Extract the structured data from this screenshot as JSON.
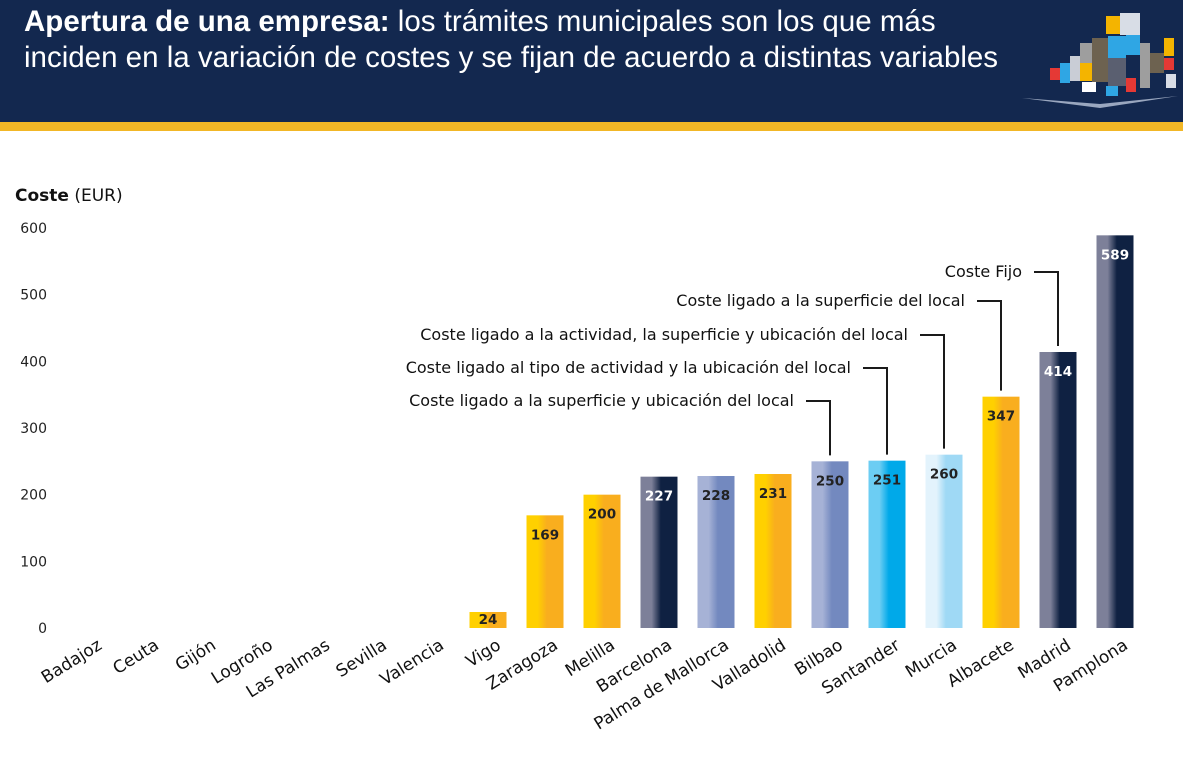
{
  "header": {
    "title_bold": "Apertura de una empresa:",
    "title_rest": " los trámites municipales son los que más inciden en la variación de costes y se fijan de acuerdo a distintas variables",
    "colors": {
      "background": "#13284f",
      "stripe": "#f2b726"
    }
  },
  "chart_data": {
    "type": "bar",
    "title": "Apertura de una empresa: los trámites municipales son los que más inciden en la variación de costes y se fijan de acuerdo a distintas variables",
    "ylabel_bold": "Coste",
    "ylabel_rest": " (EUR)",
    "xlabel": "",
    "ylim": [
      0,
      600
    ],
    "yticks": [
      0,
      100,
      200,
      300,
      400,
      500,
      600
    ],
    "grid": false,
    "categories": [
      "Badajoz",
      "Ceuta",
      "Gijón",
      "Logroño",
      "Las Palmas",
      "Sevilla",
      "Valencia",
      "Vigo",
      "Zaragoza",
      "Melilla",
      "Barcelona",
      "Palma de Mallorca",
      "Valladolid",
      "Bilbao",
      "Santander",
      "Murcia",
      "Albacete",
      "Madrid",
      "Pamplona"
    ],
    "values": [
      0,
      0,
      0,
      0,
      0,
      0,
      0,
      24,
      169,
      200,
      227,
      228,
      231,
      250,
      251,
      260,
      347,
      414,
      589
    ],
    "bar_types": [
      "none",
      "none",
      "none",
      "none",
      "none",
      "none",
      "none",
      "superficie",
      "superficie",
      "superficie",
      "fijo",
      "superficie_ubicacion",
      "superficie",
      "superficie_ubicacion",
      "actividad_ubicacion",
      "actividad_superficie_ubicacion",
      "superficie",
      "fijo",
      "fijo"
    ],
    "legend_types": {
      "fijo": {
        "label": "Coste Fijo",
        "color_light": "#7d8099",
        "color_dark": "#0f2142",
        "text": "#ffffff"
      },
      "superficie": {
        "label": "Coste ligado a la superficie del local",
        "color_light": "#ffd000",
        "color_dark": "#f9ae1e",
        "text": "#222222"
      },
      "actividad_superficie_ubicacion": {
        "label": "Coste ligado a la actividad, la superficie y ubicación del local",
        "color_light": "#e3f3fc",
        "color_dark": "#9fd9f5",
        "text": "#222222"
      },
      "actividad_ubicacion": {
        "label": "Coste ligado al tipo de actividad y la ubicación del local",
        "color_light": "#6ccdf3",
        "color_dark": "#00a9e9",
        "text": "#222222"
      },
      "superficie_ubicacion": {
        "label": "Coste ligado a la superficie y ubicación del local",
        "color_light": "#a6b2d6",
        "color_dark": "#7389bf",
        "text": "#222222"
      }
    },
    "annotations": [
      {
        "label": "Coste Fijo",
        "points_to": "Madrid"
      },
      {
        "label": "Coste ligado a la superficie del local",
        "points_to": "Albacete"
      },
      {
        "label": "Coste ligado a la actividad, la superficie y ubicación del local",
        "points_to": "Murcia"
      },
      {
        "label": "Coste ligado al tipo de actividad y la ubicación del local",
        "points_to": "Santander"
      },
      {
        "label": "Coste ligado a la superficie y ubicación del local",
        "points_to": "Bilbao"
      }
    ]
  }
}
